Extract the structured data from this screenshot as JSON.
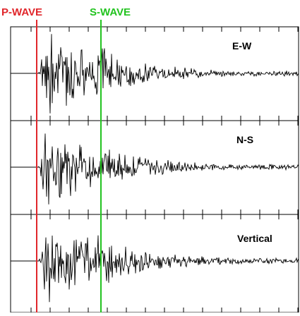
{
  "markers": {
    "p_wave": {
      "label": "P-WAVE",
      "color": "#e0262b"
    },
    "s_wave": {
      "label": "S-WAVE",
      "color": "#22c31f"
    }
  },
  "channels": [
    {
      "label": "E-W"
    },
    {
      "label": "N-S"
    },
    {
      "label": "Vertical"
    }
  ],
  "colors": {
    "trace": "#000000",
    "frame": "#000000",
    "background": "#ffffff"
  }
}
